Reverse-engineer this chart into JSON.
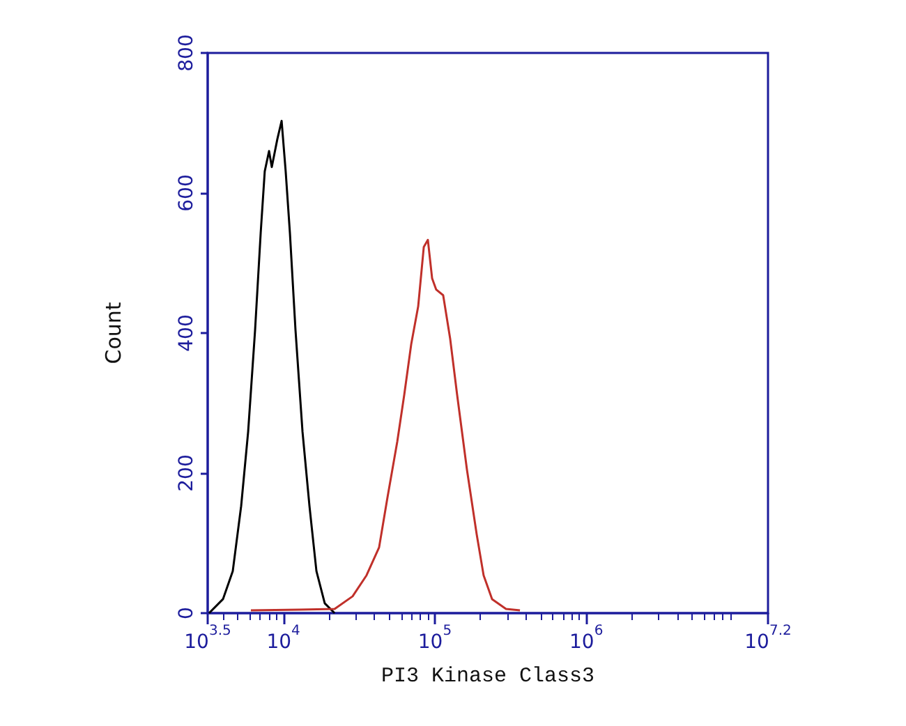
{
  "chart_data": {
    "type": "line",
    "xlabel": "PI3 Kinase Class3",
    "ylabel": "Count",
    "log": "x",
    "xlim": [
      3162,
      15850000
    ],
    "xticks": [
      {
        "value": 3162,
        "label": "10$^{3.5}$"
      },
      {
        "value": 10000,
        "label": "10$^{4}$"
      },
      {
        "value": 100000,
        "label": "10$^{5}$"
      },
      {
        "value": 1000000,
        "label": "10$^{6}$"
      },
      {
        "value": 15850000,
        "label": "10$^{7.2}$"
      }
    ],
    "ylim": [
      0,
      800
    ],
    "yticks": [
      0,
      200,
      400,
      600,
      800
    ],
    "grid": false,
    "marker": "none",
    "line_style": "solid",
    "series": [
      {
        "color": "#000000",
        "x": [
          3230,
          3990,
          4630,
          5260,
          5850,
          6500,
          7080,
          7530,
          8040,
          8380,
          9120,
          9730,
          10350,
          11040,
          12020,
          13370,
          14860,
          16520,
          18750,
          21780
        ],
        "values": [
          0,
          20,
          60,
          153,
          259,
          404,
          543,
          631,
          660,
          637,
          677,
          703,
          631,
          543,
          404,
          259,
          153,
          60,
          14,
          0
        ]
      },
      {
        "color": "#c0302a",
        "x": [
          6100,
          12790,
          21780,
          28640,
          35400,
          42850,
          48640,
          56490,
          62810,
          69820,
          77620,
          84530,
          89950,
          95940,
          102100,
          113500,
          126200,
          140300,
          162900,
          188800,
          209900,
          238800,
          295100,
          364800
        ],
        "values": [
          4,
          5,
          6,
          24,
          54,
          94,
          165,
          245,
          312,
          384,
          438,
          523,
          533,
          478,
          462,
          454,
          392,
          312,
          205,
          113,
          54,
          20,
          6,
          4
        ]
      }
    ]
  }
}
